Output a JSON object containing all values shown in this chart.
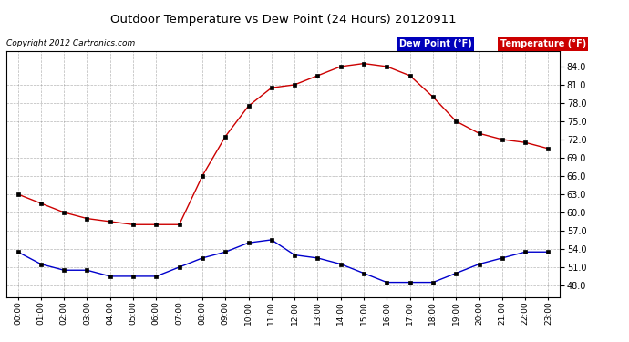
{
  "title": "Outdoor Temperature vs Dew Point (24 Hours) 20120911",
  "copyright": "Copyright 2012 Cartronics.com",
  "hours": [
    "00:00",
    "01:00",
    "02:00",
    "03:00",
    "04:00",
    "05:00",
    "06:00",
    "07:00",
    "08:00",
    "09:00",
    "10:00",
    "11:00",
    "12:00",
    "13:00",
    "14:00",
    "15:00",
    "16:00",
    "17:00",
    "18:00",
    "19:00",
    "20:00",
    "21:00",
    "22:00",
    "23:00"
  ],
  "temperature": [
    63.0,
    61.5,
    60.0,
    59.0,
    58.5,
    58.0,
    58.0,
    58.0,
    66.0,
    72.5,
    77.5,
    80.5,
    81.0,
    82.5,
    84.0,
    84.5,
    84.0,
    82.5,
    79.0,
    75.0,
    73.0,
    72.0,
    71.5,
    70.5
  ],
  "dew_point": [
    53.5,
    51.5,
    50.5,
    50.5,
    49.5,
    49.5,
    49.5,
    51.0,
    52.5,
    53.5,
    55.0,
    55.5,
    53.0,
    52.5,
    51.5,
    50.0,
    48.5,
    48.5,
    48.5,
    50.0,
    51.5,
    52.5,
    53.5,
    53.5
  ],
  "temp_color": "#cc0000",
  "dew_color": "#0000cc",
  "ylim_min": 46.0,
  "ylim_max": 86.5,
  "yticks": [
    48.0,
    51.0,
    54.0,
    57.0,
    60.0,
    63.0,
    66.0,
    69.0,
    72.0,
    75.0,
    78.0,
    81.0,
    84.0
  ],
  "bg_color": "#ffffff",
  "grid_color": "#999999",
  "legend_dew_bg": "#0000bb",
  "legend_temp_bg": "#cc0000",
  "legend_text_color": "#ffffff"
}
